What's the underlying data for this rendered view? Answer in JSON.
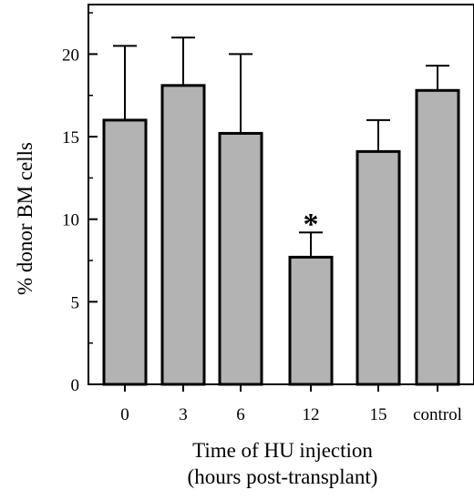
{
  "chart_data": {
    "type": "bar",
    "title": "",
    "xlabel_line1": "Time of HU injection",
    "xlabel_line2": "(hours post-transplant)",
    "ylabel": "% donor BM cells",
    "categories": [
      "0",
      "3",
      "6",
      "12",
      "15",
      "control"
    ],
    "values": [
      16.0,
      18.1,
      15.2,
      7.7,
      14.1,
      17.8
    ],
    "errors": [
      4.5,
      2.9,
      4.8,
      1.5,
      1.9,
      1.5
    ],
    "ylim": [
      0,
      23
    ],
    "yticks": [
      0,
      5,
      10,
      15,
      20
    ],
    "annotations": [
      {
        "category": "12",
        "text": "*"
      }
    ],
    "bar_color": "#b3b3b3",
    "grid": false,
    "legend": "none"
  }
}
